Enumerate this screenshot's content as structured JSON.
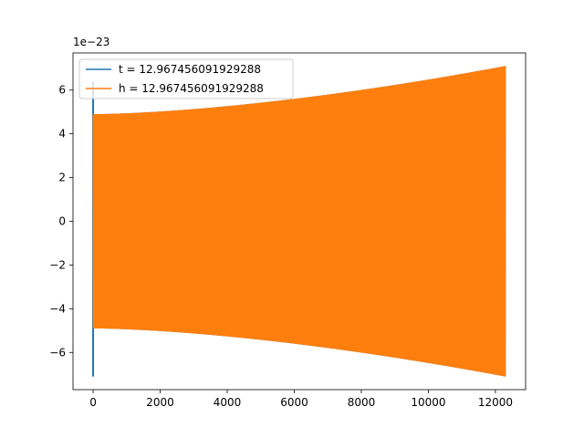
{
  "chart_data": {
    "type": "line",
    "offset_label": "1e−23",
    "xlim": [
      -600,
      12900
    ],
    "ylim": [
      -7.7,
      7.7
    ],
    "x_ticks": [
      0,
      2000,
      4000,
      6000,
      8000,
      10000,
      12000
    ],
    "x_tick_labels": [
      "0",
      "2000",
      "4000",
      "6000",
      "8000",
      "10000",
      "12000"
    ],
    "y_ticks": [
      -6,
      -4,
      -2,
      0,
      2,
      4,
      6
    ],
    "y_tick_labels": [
      "−6",
      "−4",
      "−2",
      "0",
      "2",
      "4",
      "6"
    ],
    "grid": false,
    "legend_position": "top-left",
    "series": [
      {
        "name": "t = 12.967456091929288",
        "color": "#1f77b4",
        "x_range": [
          0,
          12300
        ],
        "amplitude_start": 4.9,
        "amplitude_end": 7.1,
        "initial_spike": [
          -7.1,
          6.4
        ]
      },
      {
        "name": "h = 12.967456091929288",
        "color": "#ff7f0e",
        "x_range": [
          0,
          12300
        ],
        "amplitude_start": 4.9,
        "amplitude_end": 7.1
      }
    ]
  }
}
